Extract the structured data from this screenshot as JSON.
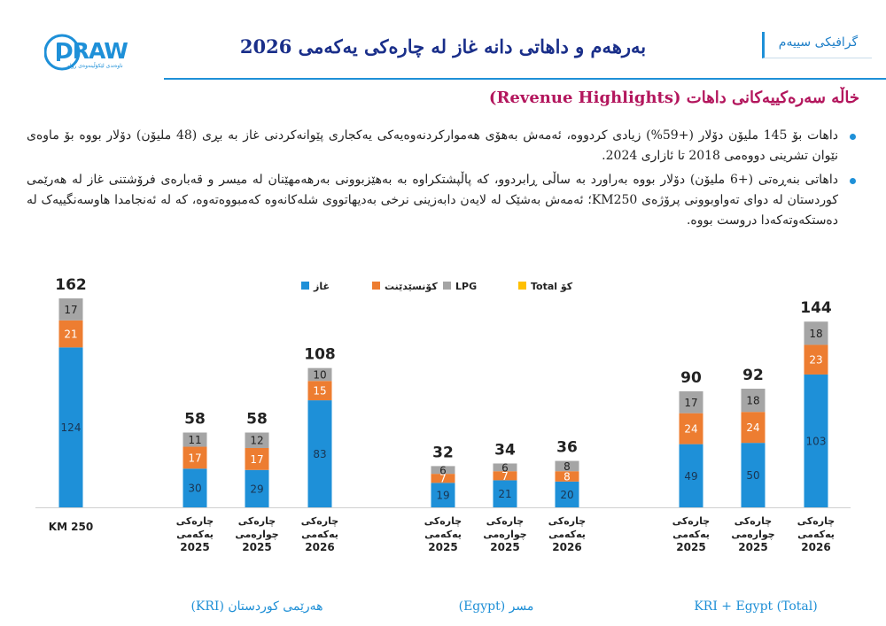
{
  "header": {
    "title": "بەرهەم و داهاتی دانە غاز لە چارەکی یەکەمی 2026",
    "tag": "گرافیکی سییەم",
    "logo_text": "DRAW",
    "logo_subtext": "ناوەندی لێکۆڵینەوەی رواو"
  },
  "section": {
    "title": "خاڵە سەرەکییەکانی داهات (Revenue Highlights)"
  },
  "bullets": [
    "داهات بۆ 145 ملیۆن دۆلار (+59%) زیادی کردووە، ئەمەش بەهۆی هەمواركردنەوەیەکی یەکجاری پێوانەکردنی غاز بە بڕی (48 ملیۆن) دۆلار بووە بۆ ماوەی نێوان تشرینی دووەمی 2018 تا ئازاری 2024.",
    "داهاتی بنەڕەتی (+6 ملیۆن) دۆلار بووە بەراورد بە ساڵی ڕابردوو، کە پاڵپشتکراوە بە بەهێزبوونی بەرهەمهێنان لە میسر و قەبارەی فرۆشتنی غاز لە هەرێمی کوردستان لە دوای تەواوبوونی پرۆژەی KM250؛ ئەمەش بەشێک لە لایەن دابەزینی نرخی بەدیهاتووی شلەکانەوە کەمبووەتەوە، کە لە ئەنجامدا هاوسەنگییەک لە دەستکەوتەکەدا دروست بووە."
  ],
  "chart_data": {
    "type": "bar",
    "stacked": true,
    "colors": {
      "gas": "#1e90d8",
      "condensate": "#ed7d31",
      "lpg": "#a5a5a5",
      "total": "#ffc000"
    },
    "legend": [
      {
        "key": "gas",
        "label": "غاز"
      },
      {
        "key": "condensate",
        "label": "كۆنسێدێنت"
      },
      {
        "key": "lpg",
        "label": "LPG"
      },
      {
        "key": "total",
        "label": "Total كۆ"
      }
    ],
    "groups": [
      {
        "label": "",
        "category_labels": [
          "KM 250"
        ]
      },
      {
        "label": "هەرێمی کوردستان (KRI)"
      },
      {
        "label": "مسر (Egypt)"
      },
      {
        "label": "KRI + Egypt (Total)"
      }
    ],
    "bars": [
      {
        "group": 0,
        "category": [
          "KM 250"
        ],
        "gas": 124,
        "condensate": 21,
        "lpg": 17,
        "total": 162
      },
      {
        "group": 1,
        "category": [
          "چارەکی",
          "یەکەمی",
          "2025"
        ],
        "gas": 30,
        "condensate": 17,
        "lpg": 11,
        "total": 58
      },
      {
        "group": 1,
        "category": [
          "چارەکی",
          "چوارەمی",
          "2025"
        ],
        "gas": 29,
        "condensate": 17,
        "lpg": 12,
        "total": 58
      },
      {
        "group": 1,
        "category": [
          "چارەکی",
          "یەکەمی",
          "2026"
        ],
        "gas": 83,
        "condensate": 15,
        "lpg": 10,
        "total": 108
      },
      {
        "group": 2,
        "category": [
          "چارەکی",
          "یەکەمی",
          "2025"
        ],
        "gas": 19,
        "condensate": 7,
        "lpg": 6,
        "total": 32
      },
      {
        "group": 2,
        "category": [
          "چارەکی",
          "چوارەمی",
          "2025"
        ],
        "gas": 21,
        "condensate": 7,
        "lpg": 6,
        "total": 34
      },
      {
        "group": 2,
        "category": [
          "چارەکی",
          "یەکەمی",
          "2026"
        ],
        "gas": 20,
        "condensate": 8,
        "lpg": 8,
        "total": 36
      },
      {
        "group": 3,
        "category": [
          "چارەکی",
          "یەکەمی",
          "2025"
        ],
        "gas": 49,
        "condensate": 24,
        "lpg": 17,
        "total": 90
      },
      {
        "group": 3,
        "category": [
          "چارەکی",
          "چوارەمی",
          "2025"
        ],
        "gas": 50,
        "condensate": 24,
        "lpg": 18,
        "total": 92
      },
      {
        "group": 3,
        "category": [
          "چارەکی",
          "یەکەمی",
          "2026"
        ],
        "gas": 103,
        "condensate": 23,
        "lpg": 18,
        "total": 144
      }
    ],
    "ylim": [
      0,
      162
    ]
  }
}
